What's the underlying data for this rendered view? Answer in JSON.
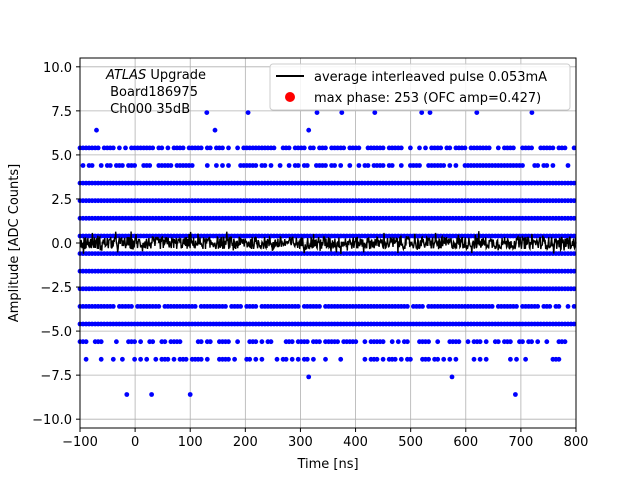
{
  "chart_data": {
    "type": "scatter",
    "xlabel": "Time [ns]",
    "ylabel": "Amplitude [ADC Counts]",
    "xlim": [
      -100,
      800
    ],
    "ylim": [
      -10.5,
      10.5
    ],
    "xticks": [
      -100,
      0,
      100,
      200,
      300,
      400,
      500,
      600,
      700,
      800
    ],
    "yticks": [
      -10.0,
      -7.5,
      -5.0,
      -2.5,
      0.0,
      2.5,
      5.0,
      7.5,
      10.0
    ],
    "grid": true,
    "annotation": {
      "line1_italic": "ATLAS",
      "line1_rest": " Upgrade",
      "line2": " Board186975",
      "line3": " Ch000 35dB"
    },
    "legend": {
      "placement": "top-right",
      "entries": [
        {
          "label": "average interleaved pulse 0.053mA",
          "marker": "line",
          "color": "#000000"
        },
        {
          "label": "max phase: 253 (OFC amp=0.427)",
          "marker": "dot",
          "color": "#ff0000"
        }
      ]
    },
    "series": [
      {
        "marker": "dot",
        "color": "#0000ff",
        "bands": [
          {
            "y": 3.4,
            "density": 1.0
          },
          {
            "y": 2.4,
            "density": 1.0
          },
          {
            "y": 1.4,
            "density": 1.0
          },
          {
            "y": 0.4,
            "density": 1.0
          },
          {
            "y": -0.6,
            "density": 1.0
          },
          {
            "y": -1.6,
            "density": 1.0
          },
          {
            "y": -2.6,
            "density": 1.0
          },
          {
            "y": -3.6,
            "density": 0.9
          },
          {
            "y": -4.6,
            "density": 1.0
          },
          {
            "y": 5.4,
            "density": 0.75
          },
          {
            "y": 4.4,
            "density": 0.6
          },
          {
            "y": -5.6,
            "density": 0.55
          },
          {
            "y": -6.6,
            "density": 0.45
          }
        ],
        "sparse_points": [
          [
            -70,
            6.4
          ],
          [
            130,
            7.4
          ],
          [
            145,
            6.4
          ],
          [
            205,
            7.4
          ],
          [
            315,
            6.4
          ],
          [
            330,
            7.4
          ],
          [
            375,
            7.4
          ],
          [
            435,
            7.4
          ],
          [
            520,
            7.4
          ],
          [
            535,
            7.4
          ],
          [
            620,
            7.4
          ],
          [
            720,
            7.4
          ],
          [
            -15,
            -8.6
          ],
          [
            30,
            -8.6
          ],
          [
            100,
            -8.6
          ],
          [
            315,
            -7.6
          ],
          [
            575,
            -7.6
          ],
          [
            690,
            -8.6
          ]
        ]
      },
      {
        "marker": "line",
        "color": "#000000",
        "baseline": 0.0,
        "noise_amplitude": 0.35
      }
    ]
  }
}
